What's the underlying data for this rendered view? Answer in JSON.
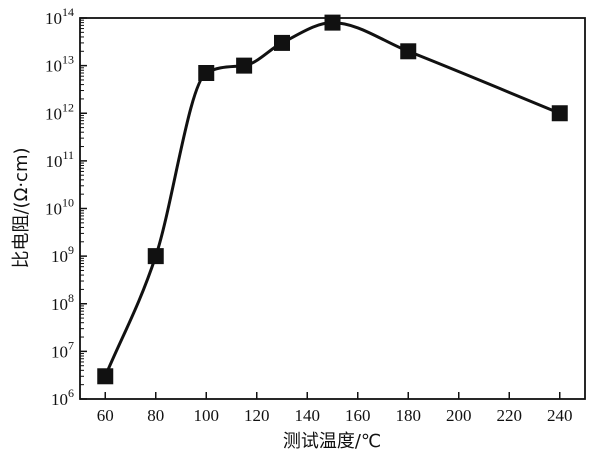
{
  "chart_data": {
    "type": "line",
    "xlabel": "测试温度/℃",
    "ylabel": "比电阻/(Ω·cm)",
    "xlim": [
      50,
      250
    ],
    "ylim": [
      1000000.0,
      100000000000000.0
    ],
    "y_scale": "log",
    "x_ticks": [
      "60",
      "80",
      "100",
      "120",
      "140",
      "160",
      "180",
      "200",
      "220",
      "240"
    ],
    "y_ticks": [
      {
        "base": "10",
        "exp": "6"
      },
      {
        "base": "10",
        "exp": "7"
      },
      {
        "base": "10",
        "exp": "8"
      },
      {
        "base": "10",
        "exp": "9"
      },
      {
        "base": "10",
        "exp": "10"
      },
      {
        "base": "10",
        "exp": "11"
      },
      {
        "base": "10",
        "exp": "12"
      },
      {
        "base": "10",
        "exp": "13"
      },
      {
        "base": "10",
        "exp": "14"
      }
    ],
    "grid": false,
    "legend": "none",
    "marker": "square",
    "marker_color": "#111111",
    "line_color": "#111111",
    "series": [
      {
        "x": [
          60,
          80,
          100,
          115,
          130,
          150,
          180,
          240
        ],
        "y": [
          3000000.0,
          1000000000.0,
          7000000000000.0,
          10000000000000.0,
          30000000000000.0,
          80000000000000.0,
          20000000000000.0,
          1000000000000.0
        ]
      }
    ]
  }
}
